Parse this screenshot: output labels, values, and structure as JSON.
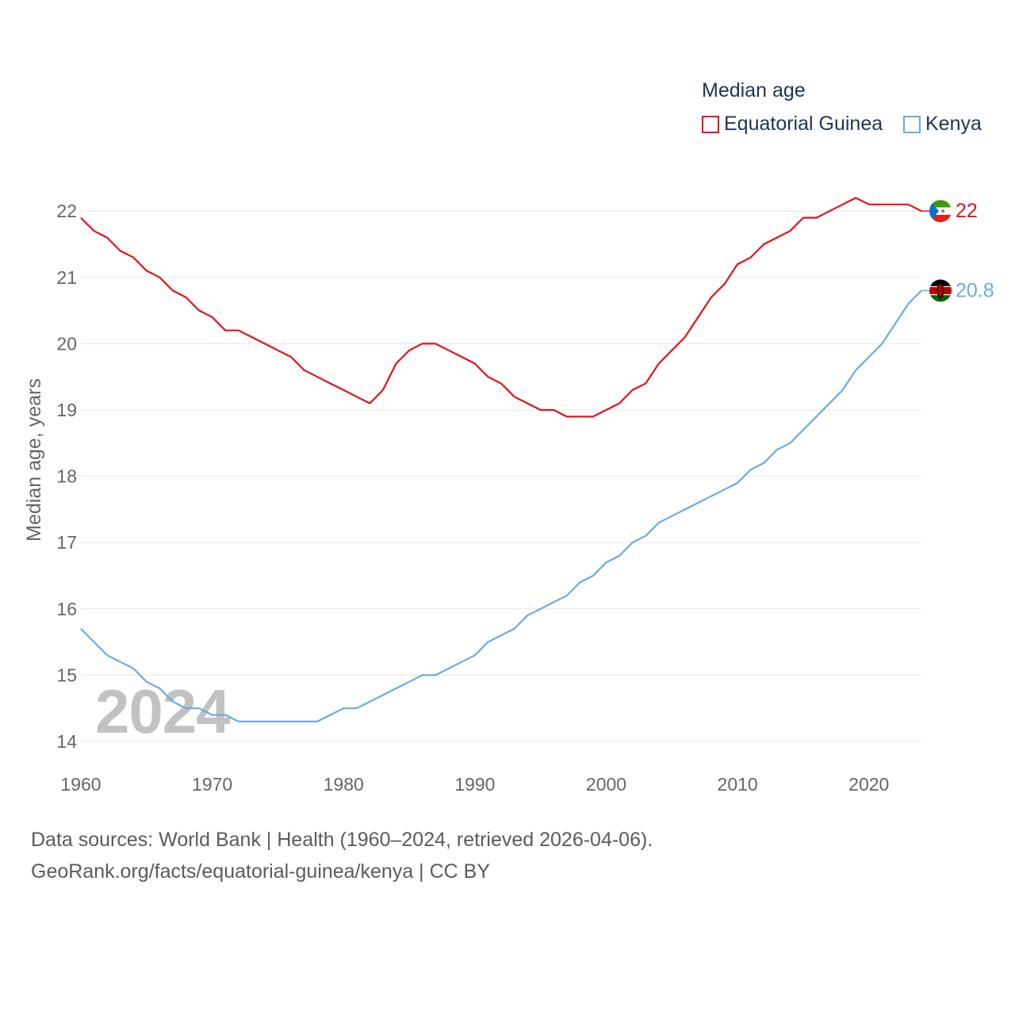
{
  "chart_data": {
    "type": "line",
    "title": "",
    "legend_title": "Median age",
    "ylabel": "Median age, years",
    "xlabel": "",
    "xlim": [
      1960,
      2024
    ],
    "ylim": [
      14,
      22.2
    ],
    "x_ticks": [
      1960,
      1970,
      1980,
      1990,
      2000,
      2010,
      2020
    ],
    "y_ticks": [
      14,
      15,
      16,
      17,
      18,
      19,
      20,
      21,
      22
    ],
    "grid": "horizontal",
    "legend_position": "top-right",
    "current_year_label": "2024",
    "x": [
      1960,
      1961,
      1962,
      1963,
      1964,
      1965,
      1966,
      1967,
      1968,
      1969,
      1970,
      1971,
      1972,
      1973,
      1974,
      1975,
      1976,
      1977,
      1978,
      1979,
      1980,
      1981,
      1982,
      1983,
      1984,
      1985,
      1986,
      1987,
      1988,
      1989,
      1990,
      1991,
      1992,
      1993,
      1994,
      1995,
      1996,
      1997,
      1998,
      1999,
      2000,
      2001,
      2002,
      2003,
      2004,
      2005,
      2006,
      2007,
      2008,
      2009,
      2010,
      2011,
      2012,
      2013,
      2014,
      2015,
      2016,
      2017,
      2018,
      2019,
      2020,
      2021,
      2022,
      2023,
      2024
    ],
    "series": [
      {
        "name": "Equatorial Guinea",
        "color": "#e3121b",
        "end_label": "22",
        "flag": "equatorial-guinea-flag-icon",
        "values": [
          21.9,
          21.7,
          21.6,
          21.4,
          21.3,
          21.1,
          21.0,
          20.8,
          20.7,
          20.5,
          20.4,
          20.2,
          20.2,
          20.1,
          20.0,
          19.9,
          19.8,
          19.6,
          19.5,
          19.4,
          19.3,
          19.2,
          19.1,
          19.3,
          19.7,
          19.9,
          20.0,
          20.0,
          19.9,
          19.8,
          19.7,
          19.5,
          19.4,
          19.2,
          19.1,
          19.0,
          19.0,
          18.9,
          18.9,
          18.9,
          19.0,
          19.1,
          19.3,
          19.4,
          19.7,
          19.9,
          20.1,
          20.4,
          20.7,
          20.9,
          21.2,
          21.3,
          21.5,
          21.6,
          21.7,
          21.9,
          21.9,
          22.0,
          22.1,
          22.2,
          22.1,
          22.1,
          22.1,
          22.1,
          22.0
        ]
      },
      {
        "name": "Kenya",
        "color": "#6aaae4",
        "end_label": "20.8",
        "flag": "kenya-flag-icon",
        "values": [
          15.7,
          15.5,
          15.3,
          15.2,
          15.1,
          14.9,
          14.8,
          14.6,
          14.5,
          14.5,
          14.4,
          14.4,
          14.3,
          14.3,
          14.3,
          14.3,
          14.3,
          14.3,
          14.3,
          14.4,
          14.5,
          14.5,
          14.6,
          14.7,
          14.8,
          14.9,
          15.0,
          15.0,
          15.1,
          15.2,
          15.3,
          15.5,
          15.6,
          15.7,
          15.9,
          16.0,
          16.1,
          16.2,
          16.4,
          16.5,
          16.7,
          16.8,
          17.0,
          17.1,
          17.3,
          17.4,
          17.5,
          17.6,
          17.7,
          17.8,
          17.9,
          18.1,
          18.2,
          18.4,
          18.5,
          18.7,
          18.9,
          19.1,
          19.3,
          19.6,
          19.8,
          20.0,
          20.3,
          20.6,
          20.8
        ]
      }
    ]
  },
  "footer": {
    "line1": "Data sources: World Bank | Health (1960–2024, retrieved 2026-04-06).",
    "line2": "GeoRank.org/facts/equatorial-guinea/kenya | CC BY"
  }
}
